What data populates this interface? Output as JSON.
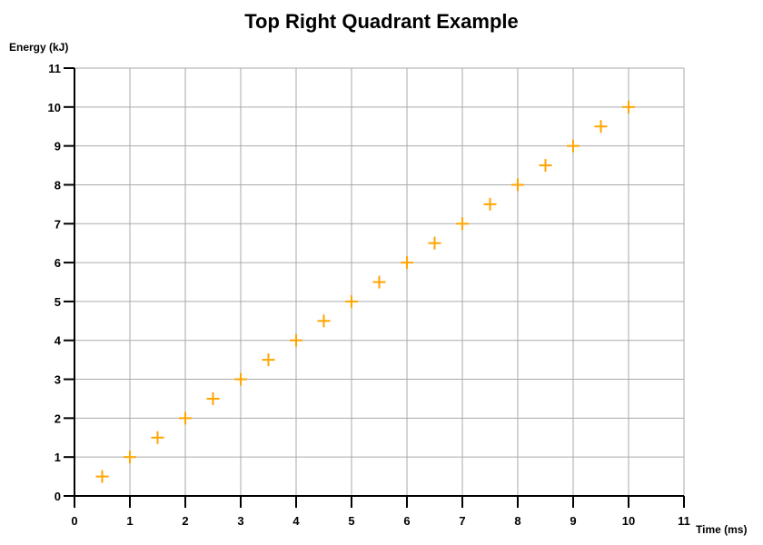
{
  "page": {
    "background": "#ffffff"
  },
  "chart_data": {
    "type": "scatter",
    "title": "Top Right Quadrant Example",
    "xlabel": "Time (ms)",
    "ylabel": "Energy (kJ)",
    "xlim": [
      0,
      11
    ],
    "ylim": [
      0,
      11
    ],
    "xticks": [
      0,
      1,
      2,
      3,
      4,
      5,
      6,
      7,
      8,
      9,
      10,
      11
    ],
    "yticks": [
      0,
      1,
      2,
      3,
      4,
      5,
      6,
      7,
      8,
      9,
      10,
      11
    ],
    "grid": true,
    "legend": false,
    "marker": "plus",
    "colors": {
      "marker": "#FFA500",
      "grid": "#AAAAAA",
      "axis": "#000000",
      "text": "#000000"
    },
    "series": [
      {
        "points": [
          [
            0.5,
            0.5
          ],
          [
            1.0,
            1.0
          ],
          [
            1.5,
            1.5
          ],
          [
            2.0,
            2.0
          ],
          [
            2.5,
            2.5
          ],
          [
            3.0,
            3.0
          ],
          [
            3.5,
            3.5
          ],
          [
            4.0,
            4.0
          ],
          [
            4.5,
            4.5
          ],
          [
            5.0,
            5.0
          ],
          [
            5.5,
            5.5
          ],
          [
            6.0,
            6.0
          ],
          [
            6.5,
            6.5
          ],
          [
            7.0,
            7.0
          ],
          [
            7.5,
            7.5
          ],
          [
            8.0,
            8.0
          ],
          [
            8.5,
            8.5
          ],
          [
            9.0,
            9.0
          ],
          [
            9.5,
            9.5
          ],
          [
            10.0,
            10.0
          ]
        ]
      }
    ]
  }
}
